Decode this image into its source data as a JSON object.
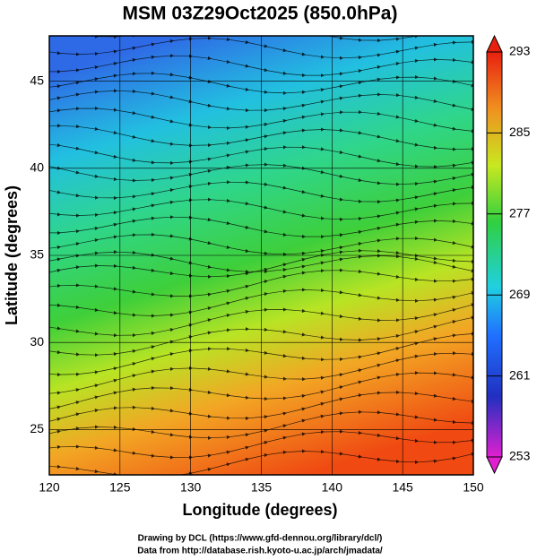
{
  "chart_data": {
    "type": "map",
    "title": "MSM 03Z29Oct2025 (850.0hPa)",
    "xlabel": "Longitude (degrees)",
    "ylabel": "Latitude  (degrees)",
    "xlim": [
      120,
      150
    ],
    "ylim": [
      22.4,
      47.6
    ],
    "xticks": [
      120,
      125,
      130,
      135,
      140,
      145,
      150
    ],
    "yticks": [
      25,
      30,
      35,
      40,
      45
    ],
    "grid": true,
    "colorbar": {
      "lim": [
        253,
        293
      ],
      "ticks": [
        253,
        261,
        269,
        277,
        285,
        293
      ]
    },
    "footnotes": [
      "Drawing by DCL (https://www.gfd-dennou.org/library/dcl/)",
      "Data from http://database.rish.kyoto-u.ac.jp/arch/jmadata/"
    ]
  }
}
